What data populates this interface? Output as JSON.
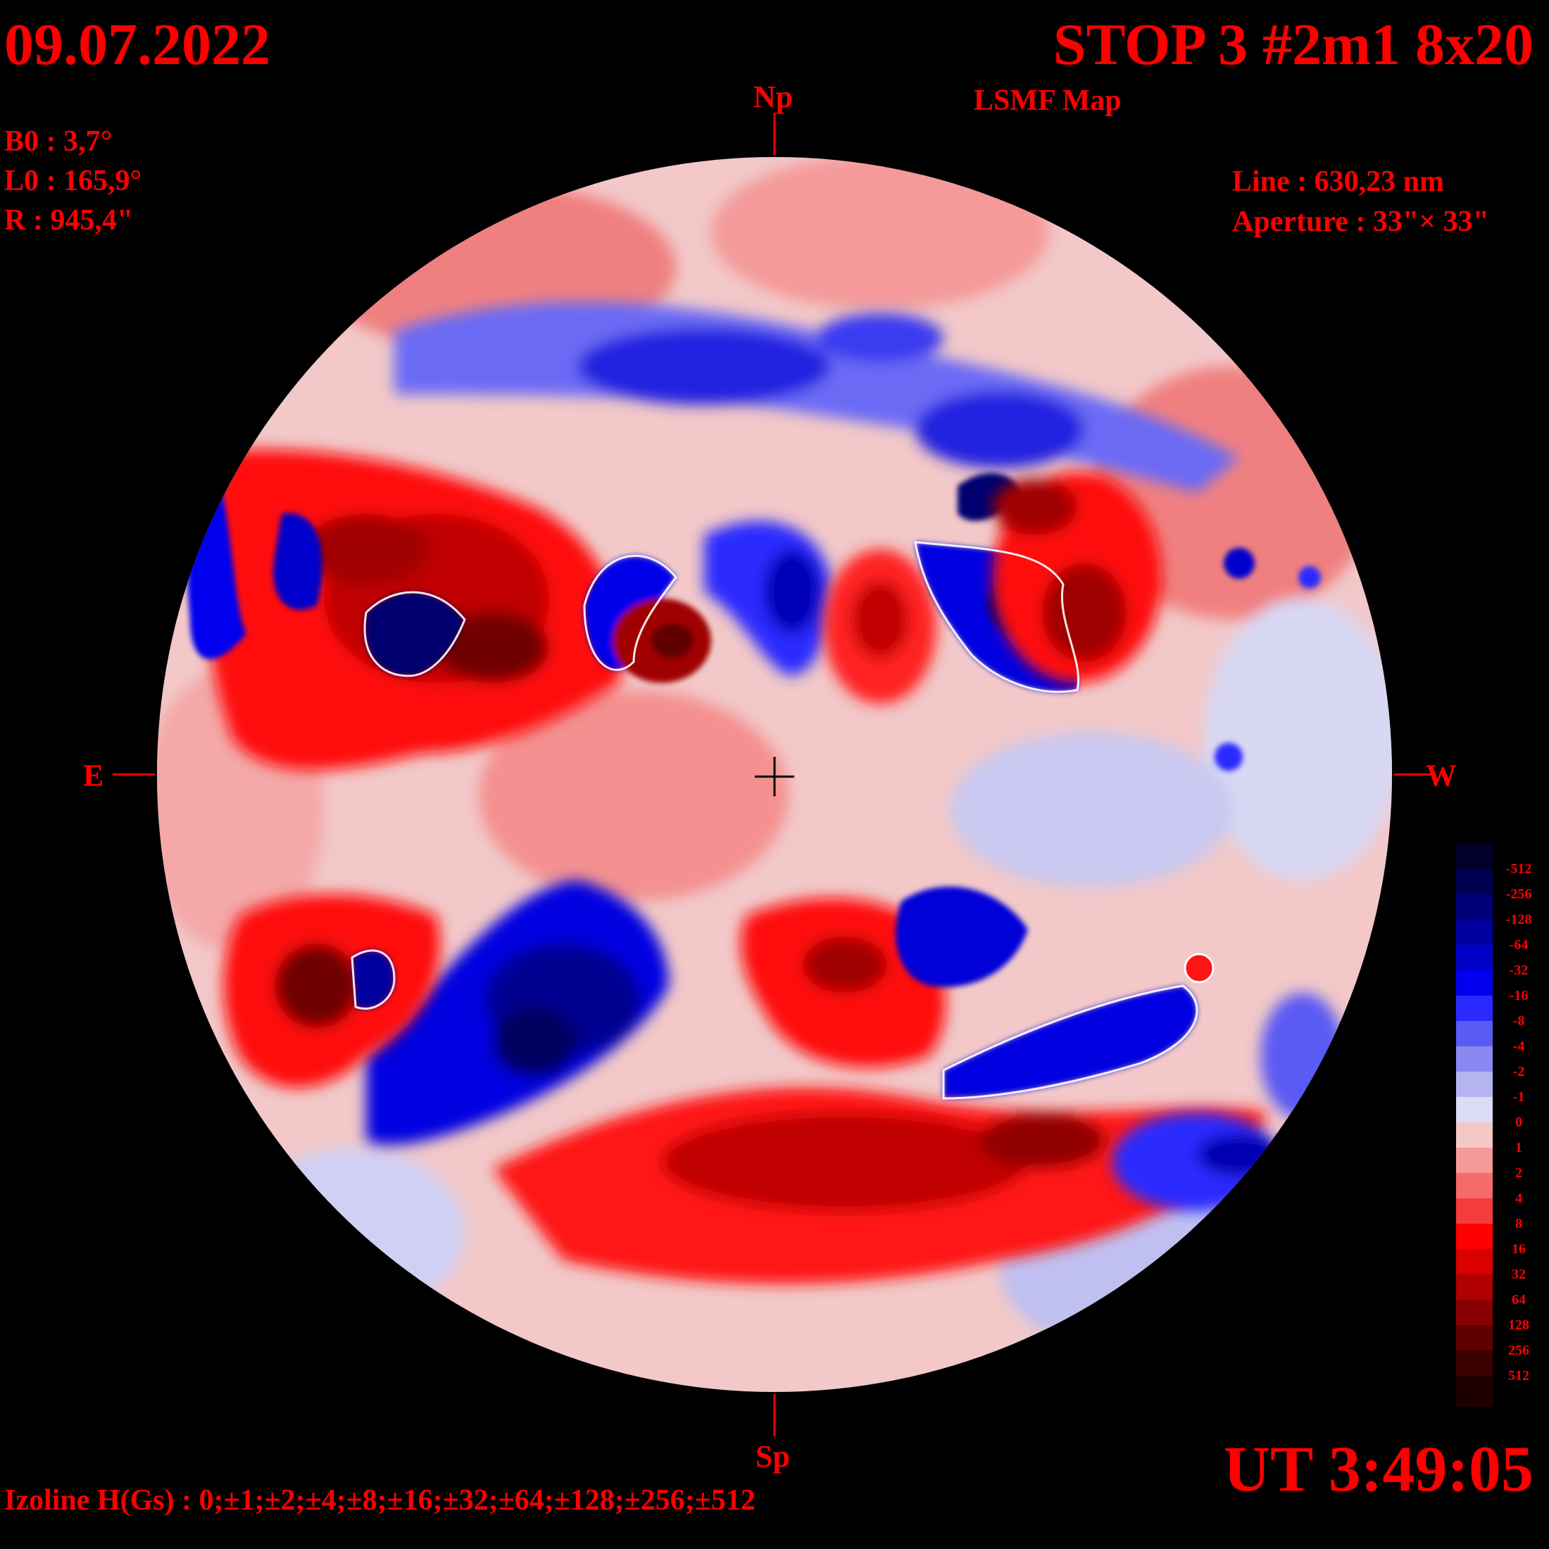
{
  "header": {
    "date": "09.07.2022",
    "title": "STOP 3 #2m1 8x20",
    "subtitle": "LSMF  Map"
  },
  "ephemeris": {
    "b0": "B0 : 3,7°",
    "l0": "L0 : 165,9°",
    "radius": "R  : 945,4\""
  },
  "instrument": {
    "line": "Line :  630,23 nm",
    "aperture": "Aperture : 33\"× 33\""
  },
  "directions": {
    "north": "Np",
    "south": "Sp",
    "east": "E",
    "west": "W"
  },
  "time": "UT 3:49:05",
  "izoline": "Izoline H(Gs) : 0;±1;±2;±4;±8;±16;±32;±64;±128;±256;±512",
  "legend": {
    "levels": [
      {
        "label": "-512",
        "color": "#00002a"
      },
      {
        "label": "-256",
        "color": "#000050"
      },
      {
        "label": "-128",
        "color": "#000078"
      },
      {
        "label": "-64",
        "color": "#0000a0"
      },
      {
        "label": "-32",
        "color": "#0000c8"
      },
      {
        "label": "-16",
        "color": "#0000ee"
      },
      {
        "label": "-8",
        "color": "#2a2aff"
      },
      {
        "label": "-4",
        "color": "#5a5af5"
      },
      {
        "label": "-2",
        "color": "#8888f0"
      },
      {
        "label": "-1",
        "color": "#b4b4f0"
      },
      {
        "label": "0",
        "color": "#dcdcf5"
      },
      {
        "label": "1",
        "color": "#f5c8c8"
      },
      {
        "label": "2",
        "color": "#f59a9a"
      },
      {
        "label": "4",
        "color": "#f56a6a"
      },
      {
        "label": "8",
        "color": "#f53c3c"
      },
      {
        "label": "16",
        "color": "#ff0000"
      },
      {
        "label": "32",
        "color": "#d80000"
      },
      {
        "label": "64",
        "color": "#b00000"
      },
      {
        "label": "128",
        "color": "#880000"
      },
      {
        "label": "256",
        "color": "#600000"
      },
      {
        "label": "512",
        "color": "#3a0000"
      }
    ],
    "extra_color": "#1e0000"
  },
  "map_colors": {
    "background": "#000000",
    "neutral_positive": "#f5c8c8",
    "neutral_negative": "#c8c8f0",
    "contour": "#ffffff"
  }
}
